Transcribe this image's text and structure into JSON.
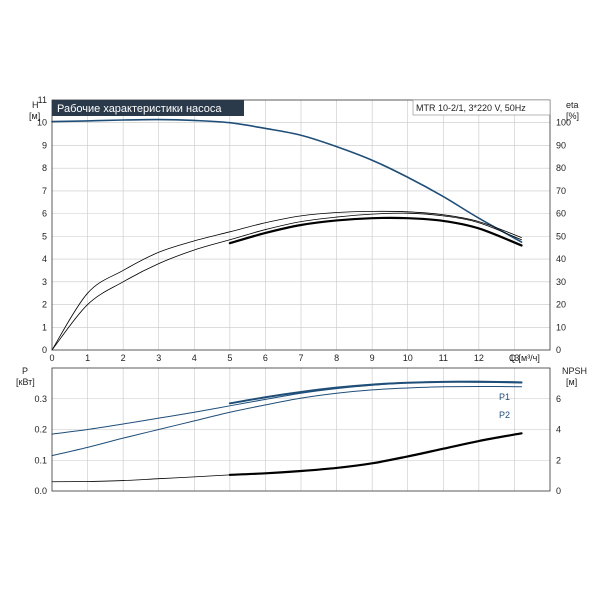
{
  "title": "Рабочие характеристики насоса",
  "model": "MTR 10-2/1, 3*220 V, 50Hz",
  "colors": {
    "blue": "#1f4e79",
    "black": "#000000",
    "title_bg": "#2b3a4a",
    "title_fg": "#ffffff",
    "grid": "#c8c8c8"
  },
  "chart_data": [
    {
      "type": "line",
      "name": "head-efficiency",
      "x_axis": {
        "label": "Q [м³/ч]",
        "min": 0,
        "max": 14,
        "ticks": [
          0,
          1,
          2,
          3,
          4,
          5,
          6,
          7,
          8,
          9,
          10,
          11,
          12,
          13
        ]
      },
      "y_left": {
        "label_top": "H",
        "label_unit": "[м]",
        "min": 0,
        "max": 11,
        "ticks": [
          0,
          1,
          2,
          3,
          4,
          5,
          6,
          7,
          8,
          9,
          10,
          11
        ]
      },
      "y_right": {
        "label_top": "eta",
        "label_unit": "[%]",
        "min": 0,
        "max": 110,
        "ticks": [
          0,
          10,
          20,
          30,
          40,
          50,
          60,
          70,
          80,
          90,
          100
        ]
      },
      "grid": true,
      "series": [
        {
          "axis": "left",
          "color": "#1f4e79",
          "width": 1.6,
          "x": [
            0,
            1,
            2,
            3,
            4,
            5,
            6,
            7,
            8,
            9,
            10,
            11,
            12,
            13.2
          ],
          "y": [
            10.05,
            10.08,
            10.12,
            10.14,
            10.1,
            10.0,
            9.75,
            9.45,
            8.95,
            8.35,
            7.6,
            6.75,
            5.8,
            4.75
          ]
        },
        {
          "axis": "right",
          "color": "#000000",
          "width": 0.8,
          "x": [
            0,
            1,
            2,
            3,
            4,
            5,
            6,
            7,
            8,
            9,
            10,
            11,
            12,
            13.2
          ],
          "y": [
            0,
            25,
            35,
            43,
            48,
            52,
            56,
            59,
            60.5,
            61,
            60.8,
            59.5,
            56.5,
            49.5
          ]
        },
        {
          "axis": "right",
          "color": "#000000",
          "width": 0.8,
          "x": [
            0,
            1,
            2,
            3,
            4,
            5,
            6,
            7,
            8,
            9,
            10,
            11,
            12,
            13.2
          ],
          "y": [
            0,
            20,
            30,
            38,
            44,
            48.5,
            53,
            56.5,
            58.5,
            59.8,
            60.2,
            59,
            56,
            48.5
          ]
        },
        {
          "axis": "right",
          "color": "#000000",
          "width": 2.2,
          "x": [
            5,
            6,
            7,
            8,
            9,
            10,
            11,
            12,
            13.2
          ],
          "y": [
            47,
            51.5,
            55,
            57,
            58,
            58,
            56.8,
            53.5,
            46
          ]
        }
      ]
    },
    {
      "type": "line",
      "name": "power-npsh",
      "x_axis": {
        "min": 0,
        "max": 14
      },
      "y_left": {
        "label_top": "P",
        "label_unit": "[кВт]",
        "min": 0,
        "max": 0.4,
        "ticks": [
          0.0,
          0.1,
          0.2,
          0.3
        ],
        "tick_labels": [
          "0.0",
          "0.1",
          "0.2",
          "0.3"
        ]
      },
      "y_right": {
        "label_top": "NPSH",
        "label_unit": "[м]",
        "min": 0,
        "max": 8,
        "ticks": [
          0,
          2,
          4,
          6
        ]
      },
      "grid": true,
      "series": [
        {
          "axis": "left",
          "name": "P1",
          "color": "#1f4e79",
          "width": 1.0,
          "x": [
            0,
            1,
            2,
            3,
            4,
            5,
            6,
            7,
            8,
            9,
            10,
            11,
            12,
            13.2
          ],
          "y": [
            0.185,
            0.2,
            0.218,
            0.237,
            0.256,
            0.277,
            0.298,
            0.318,
            0.333,
            0.344,
            0.352,
            0.356,
            0.357,
            0.355
          ]
        },
        {
          "axis": "left",
          "name": "P2",
          "color": "#1f4e79",
          "width": 1.0,
          "x": [
            0,
            1,
            2,
            3,
            4,
            5,
            6,
            7,
            8,
            9,
            10,
            11,
            12,
            13.2
          ],
          "y": [
            0.115,
            0.142,
            0.172,
            0.2,
            0.228,
            0.256,
            0.28,
            0.302,
            0.318,
            0.329,
            0.335,
            0.339,
            0.34,
            0.339
          ]
        },
        {
          "axis": "left",
          "color": "#1f4e79",
          "width": 2.0,
          "x": [
            5,
            6,
            7,
            8,
            9,
            10,
            11,
            12,
            13.2
          ],
          "y": [
            0.285,
            0.305,
            0.322,
            0.336,
            0.346,
            0.352,
            0.355,
            0.355,
            0.353
          ]
        },
        {
          "axis": "right",
          "color": "#000000",
          "width": 0.8,
          "x": [
            0,
            1,
            2,
            3,
            4,
            5
          ],
          "y": [
            0.6,
            0.62,
            0.68,
            0.8,
            0.92,
            1.05
          ]
        },
        {
          "axis": "right",
          "color": "#000000",
          "width": 2.2,
          "x": [
            5,
            6,
            7,
            8,
            9,
            10,
            11,
            12,
            13.2
          ],
          "y": [
            1.05,
            1.15,
            1.3,
            1.5,
            1.8,
            2.25,
            2.75,
            3.25,
            3.75
          ]
        }
      ]
    }
  ]
}
